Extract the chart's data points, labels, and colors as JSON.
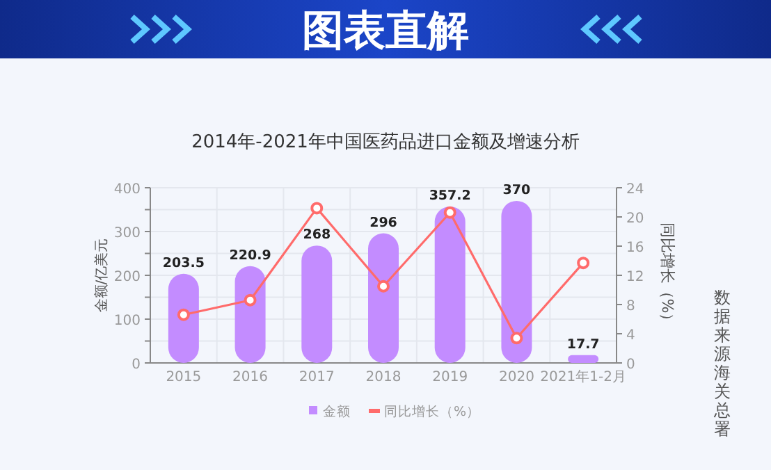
{
  "chart_data": {
    "type": "bar",
    "title": "图表直解",
    "subtitle": "2014年-2021年中国医药品进口金额及增速分析",
    "categories": [
      "2015",
      "2016",
      "2017",
      "2018",
      "2019",
      "2020",
      "2021年1-2月"
    ],
    "series": [
      {
        "name": "金额",
        "color": "#c38cff",
        "values": [
          203.5,
          220.9,
          268,
          296,
          357.2,
          370,
          17.7
        ],
        "value_labels": [
          "203.5",
          "220.9",
          "268",
          "296",
          "357.2",
          "370",
          "17.7"
        ]
      },
      {
        "name": "同比增长（%）",
        "type": "line",
        "axis": "y2",
        "color": "#ff6b6b",
        "values": [
          6.6,
          8.6,
          21.2,
          10.5,
          20.6,
          3.4,
          13.7
        ]
      }
    ],
    "ylabel": "金额/亿美元",
    "y2label": "同比增长（%）",
    "ylim": [
      0,
      400
    ],
    "yticks": [
      0,
      {
        "value": 50,
        "label": null
      },
      100,
      {
        "value": 150,
        "label": null
      },
      200,
      {
        "value": 250,
        "label": null
      },
      300,
      {
        "value": 350,
        "label": null
      },
      400
    ],
    "y2lim": [
      0,
      24
    ],
    "y2ticks": [
      0,
      4,
      8,
      12,
      16,
      20,
      24
    ],
    "grid": true,
    "legend": "bottom",
    "marker": "circle",
    "annotations": [
      "数据来源海关总署"
    ]
  }
}
